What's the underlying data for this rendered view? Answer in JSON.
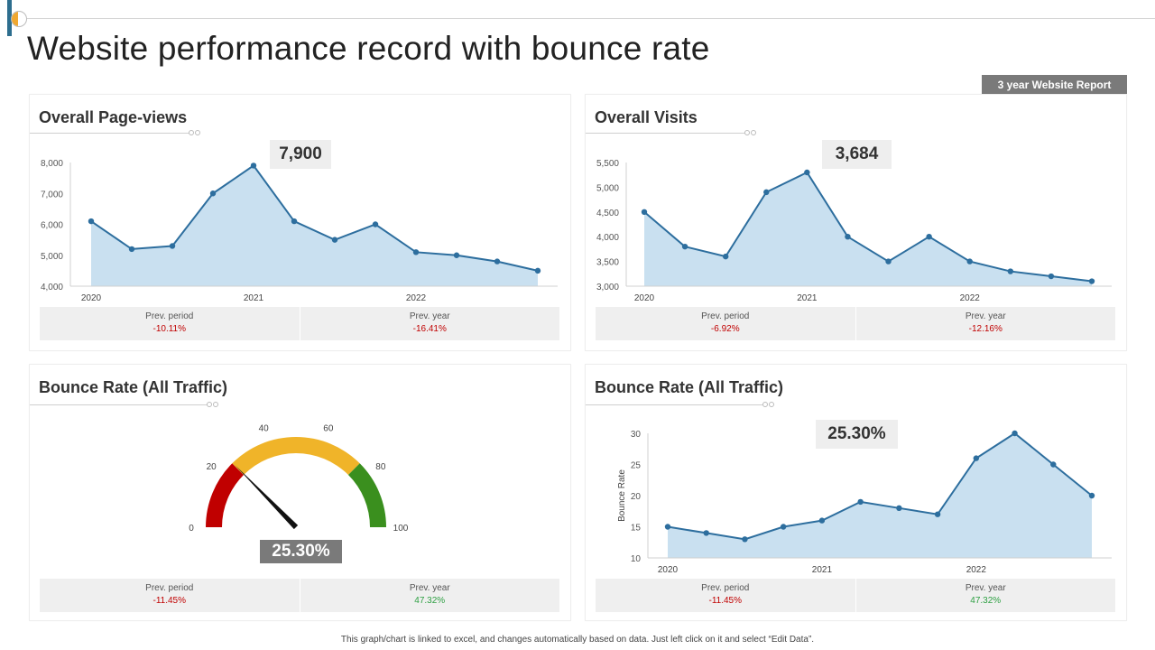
{
  "title": "Website performance record with bounce rate",
  "badge": "3 year Website Report",
  "footnote": "This graph/chart is linked to excel, and changes automatically based on data. Just left click on it and select “Edit Data”.",
  "colors": {
    "line": "#2d6e9e",
    "area": "#c9e0f0",
    "red": "#c00000",
    "yellow": "#f0b429",
    "green": "#3a8f1e",
    "neg": "#c00000",
    "pos": "#2ea043"
  },
  "panels": {
    "pageviews": {
      "title": "Overall Page-views",
      "callout": "7,900",
      "stats": {
        "prev_period_label": "Prev. period",
        "prev_period": "-10.11%",
        "prev_year_label": "Prev. year",
        "prev_year": "-16.41%"
      }
    },
    "visits": {
      "title": "Overall Visits",
      "callout": "3,684",
      "stats": {
        "prev_period_label": "Prev. period",
        "prev_period": "-6.92%",
        "prev_year_label": "Prev. year",
        "prev_year": "-12.16%"
      }
    },
    "gauge": {
      "title": "Bounce Rate (All Traffic)",
      "callout": "25.30%",
      "stats": {
        "prev_period_label": "Prev. period",
        "prev_period": "-11.45%",
        "prev_year_label": "Prev. year",
        "prev_year": "47.32%"
      }
    },
    "bounce": {
      "title": "Bounce Rate (All Traffic)",
      "callout": "25.30%",
      "stats": {
        "prev_period_label": "Prev. period",
        "prev_period": "-11.45%",
        "prev_year_label": "Prev. year",
        "prev_year": "47.32%"
      }
    }
  },
  "chart_data": [
    {
      "id": "pageviews",
      "type": "area",
      "title": "Overall Page-views",
      "x_tick_labels": [
        "2020",
        "2021",
        "2022"
      ],
      "x_tick_index": [
        0,
        4,
        8
      ],
      "values": [
        6100,
        5200,
        5300,
        7000,
        7900,
        6100,
        5500,
        6000,
        5100,
        5000,
        4800,
        4500
      ],
      "ylim": [
        4000,
        8000
      ],
      "yticks": [
        4000,
        5000,
        6000,
        7000,
        8000
      ],
      "ytick_labels": [
        "4,000",
        "5,000",
        "6,000",
        "7,000",
        "8,000"
      ],
      "ylabel": ""
    },
    {
      "id": "visits",
      "type": "area",
      "title": "Overall Visits",
      "x_tick_labels": [
        "2020",
        "2021",
        "2022"
      ],
      "x_tick_index": [
        0,
        4,
        8
      ],
      "values": [
        4500,
        3800,
        3600,
        4900,
        5300,
        4000,
        3500,
        4000,
        3500,
        3300,
        3200,
        3100
      ],
      "ylim": [
        3000,
        5500
      ],
      "yticks": [
        3000,
        3500,
        4000,
        4500,
        5000,
        5500
      ],
      "ytick_labels": [
        "3,000",
        "3,500",
        "4,000",
        "4,500",
        "5,000",
        "5,500"
      ],
      "ylabel": ""
    },
    {
      "id": "gauge",
      "type": "gauge",
      "title": "Bounce Rate (All Traffic)",
      "value": 25.3,
      "range": [
        0,
        100
      ],
      "bands": [
        {
          "from": 0,
          "to": 25,
          "color": "red"
        },
        {
          "from": 25,
          "to": 75,
          "color": "yellow"
        },
        {
          "from": 75,
          "to": 100,
          "color": "green"
        }
      ],
      "tick_values": [
        0,
        20,
        40,
        60,
        80,
        100
      ],
      "tick_labels": [
        "0",
        "20",
        "40",
        "60",
        "80",
        "100"
      ]
    },
    {
      "id": "bounce",
      "type": "area",
      "title": "Bounce Rate (All Traffic)",
      "x_tick_labels": [
        "2020",
        "2021",
        "2022"
      ],
      "x_tick_index": [
        0,
        4,
        8
      ],
      "values": [
        15,
        14,
        13,
        15,
        16,
        19,
        18,
        17,
        26,
        30,
        25,
        20
      ],
      "ylim": [
        10,
        30
      ],
      "yticks": [
        10,
        15,
        20,
        25,
        30
      ],
      "ytick_labels": [
        "10",
        "15",
        "20",
        "25",
        "30"
      ],
      "ylabel": "Bounce Rate"
    }
  ]
}
